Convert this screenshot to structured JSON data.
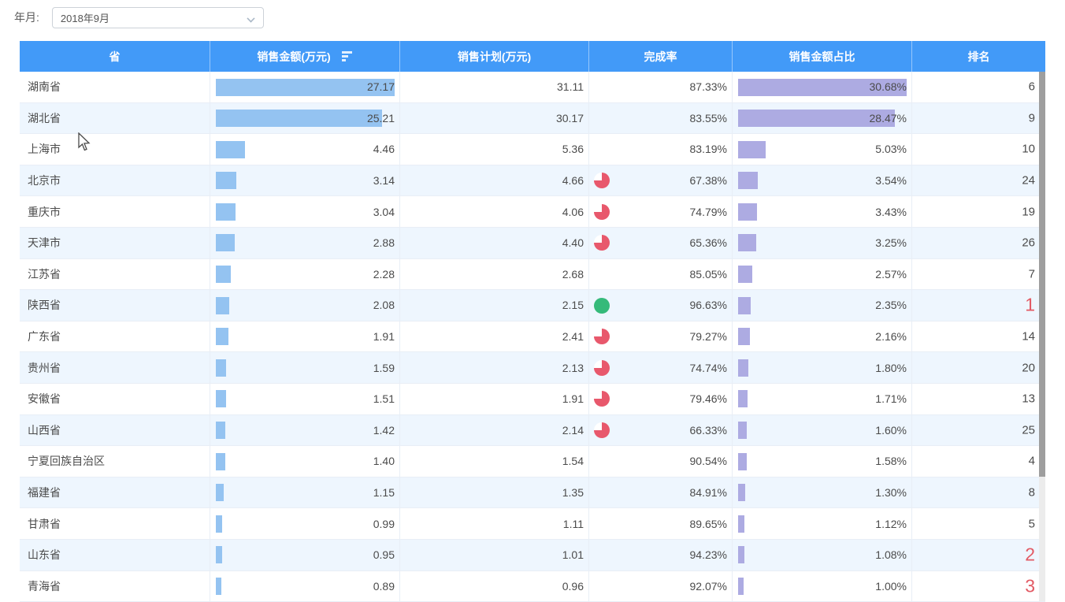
{
  "filter_bar": {
    "label": "年月:",
    "selected_value": "2018年9月"
  },
  "table": {
    "columns": [
      {
        "label": "省",
        "sort_icon": false
      },
      {
        "label": "销售金额(万元)",
        "sort_icon": true
      },
      {
        "label": "销售计划(万元)",
        "sort_icon": false
      },
      {
        "label": "完成率",
        "sort_icon": false
      },
      {
        "label": "销售金额占比",
        "sort_icon": false
      },
      {
        "label": "排名",
        "sort_icon": false
      }
    ],
    "bar_scale": {
      "amount_max": 27.17,
      "share_max": 30.68
    },
    "rows": [
      {
        "province": "湖南省",
        "amount": "27.17",
        "plan": "31.11",
        "completion": "87.33%",
        "status_icon": "none",
        "share": "30.68%",
        "rank": "6",
        "rank_highlight": false
      },
      {
        "province": "湖北省",
        "amount": "25.21",
        "plan": "30.17",
        "completion": "83.55%",
        "status_icon": "none",
        "share": "28.47%",
        "rank": "9",
        "rank_highlight": false
      },
      {
        "province": "上海市",
        "amount": "4.46",
        "plan": "5.36",
        "completion": "83.19%",
        "status_icon": "none",
        "share": "5.03%",
        "rank": "10",
        "rank_highlight": false
      },
      {
        "province": "北京市",
        "amount": "3.14",
        "plan": "4.66",
        "completion": "67.38%",
        "status_icon": "red-pie",
        "share": "3.54%",
        "rank": "24",
        "rank_highlight": false
      },
      {
        "province": "重庆市",
        "amount": "3.04",
        "plan": "4.06",
        "completion": "74.79%",
        "status_icon": "red-pie",
        "share": "3.43%",
        "rank": "19",
        "rank_highlight": false
      },
      {
        "province": "天津市",
        "amount": "2.88",
        "plan": "4.40",
        "completion": "65.36%",
        "status_icon": "red-pie",
        "share": "3.25%",
        "rank": "26",
        "rank_highlight": false
      },
      {
        "province": "江苏省",
        "amount": "2.28",
        "plan": "2.68",
        "completion": "85.05%",
        "status_icon": "none",
        "share": "2.57%",
        "rank": "7",
        "rank_highlight": false
      },
      {
        "province": "陕西省",
        "amount": "2.08",
        "plan": "2.15",
        "completion": "96.63%",
        "status_icon": "green-circle",
        "share": "2.35%",
        "rank": "1",
        "rank_highlight": true
      },
      {
        "province": "广东省",
        "amount": "1.91",
        "plan": "2.41",
        "completion": "79.27%",
        "status_icon": "red-pie",
        "share": "2.16%",
        "rank": "14",
        "rank_highlight": false
      },
      {
        "province": "贵州省",
        "amount": "1.59",
        "plan": "2.13",
        "completion": "74.74%",
        "status_icon": "red-pie",
        "share": "1.80%",
        "rank": "20",
        "rank_highlight": false
      },
      {
        "province": "安徽省",
        "amount": "1.51",
        "plan": "1.91",
        "completion": "79.46%",
        "status_icon": "red-pie",
        "share": "1.71%",
        "rank": "13",
        "rank_highlight": false
      },
      {
        "province": "山西省",
        "amount": "1.42",
        "plan": "2.14",
        "completion": "66.33%",
        "status_icon": "red-pie",
        "share": "1.60%",
        "rank": "25",
        "rank_highlight": false
      },
      {
        "province": "宁夏回族自治区",
        "amount": "1.40",
        "plan": "1.54",
        "completion": "90.54%",
        "status_icon": "none",
        "share": "1.58%",
        "rank": "4",
        "rank_highlight": false
      },
      {
        "province": "福建省",
        "amount": "1.15",
        "plan": "1.35",
        "completion": "84.91%",
        "status_icon": "none",
        "share": "1.30%",
        "rank": "8",
        "rank_highlight": false
      },
      {
        "province": "甘肃省",
        "amount": "0.99",
        "plan": "1.11",
        "completion": "89.65%",
        "status_icon": "none",
        "share": "1.12%",
        "rank": "5",
        "rank_highlight": false
      },
      {
        "province": "山东省",
        "amount": "0.95",
        "plan": "1.01",
        "completion": "94.23%",
        "status_icon": "none",
        "share": "1.08%",
        "rank": "2",
        "rank_highlight": true
      },
      {
        "province": "青海省",
        "amount": "0.89",
        "plan": "0.96",
        "completion": "92.07%",
        "status_icon": "none",
        "share": "1.00%",
        "rank": "3",
        "rank_highlight": true
      }
    ]
  },
  "colors": {
    "header_bg": "#429af8",
    "amount_bar": "#94c3f1",
    "share_bar": "#adabe2",
    "row_stripe": "#eef6fe",
    "status_red": "#e8586c",
    "status_green": "#35ba7a",
    "rank_red": "#e25a64"
  }
}
